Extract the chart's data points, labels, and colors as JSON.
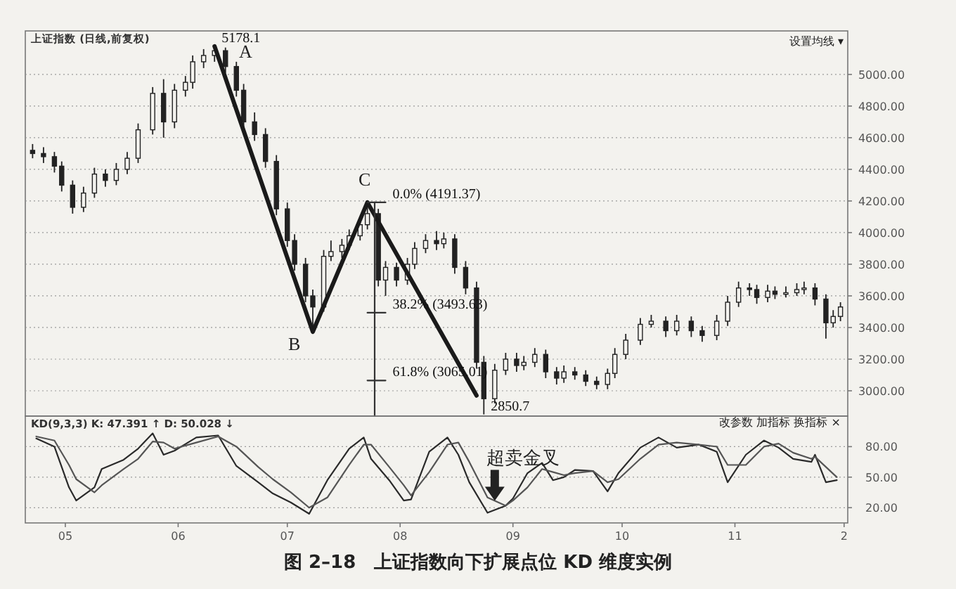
{
  "chart_data": [
    {
      "type": "candlestick",
      "title": "上证指数 (日线,前复权)",
      "color": "#222222",
      "x": [
        "--04-22",
        "--04-25",
        "--04-28",
        "--04-30",
        "--05-03",
        "--05-06",
        "--05-09",
        "--05-12",
        "--05-15",
        "--05-18",
        "--05-21",
        "--05-25",
        "--05-28",
        "--05-31",
        "--06-03",
        "--06-05",
        "--06-08",
        "--06-11",
        "--06-14",
        "--06-17",
        "--06-19",
        "--06-22",
        "--06-25",
        "--06-28",
        "--07-01",
        "--07-03",
        "--07-06",
        "--07-08",
        "--07-11",
        "--07-13",
        "--07-16",
        "--07-18",
        "--07-21",
        "--07-23",
        "--07-26",
        "--07-28",
        "--07-31",
        "--08-03",
        "--08-05",
        "--08-08",
        "--08-11",
        "--08-13",
        "--08-16",
        "--08-19",
        "--08-22",
        "--08-24",
        "--08-27",
        "--08-30",
        "--09-02",
        "--09-04",
        "--09-07",
        "--09-10",
        "--09-13",
        "--09-15",
        "--09-18",
        "--09-21",
        "--09-24",
        "--09-27",
        "--09-29",
        "--10-02",
        "--10-06",
        "--10-09",
        "--10-13",
        "--10-16",
        "--10-20",
        "--10-23",
        "--10-27",
        "--10-30",
        "--11-02",
        "--11-05",
        "--11-07",
        "--11-10",
        "--11-12",
        "--11-15",
        "--11-18",
        "--11-20",
        "--11-23",
        "--11-26",
        "--11-28",
        "--11-30"
      ],
      "ohlc": [
        [
          4520,
          4560,
          4470,
          4500
        ],
        [
          4500,
          4540,
          4440,
          4480
        ],
        [
          4480,
          4510,
          4380,
          4420
        ],
        [
          4420,
          4450,
          4260,
          4300
        ],
        [
          4300,
          4330,
          4120,
          4160
        ],
        [
          4160,
          4290,
          4130,
          4250
        ],
        [
          4250,
          4410,
          4220,
          4370
        ],
        [
          4370,
          4400,
          4290,
          4330
        ],
        [
          4330,
          4440,
          4300,
          4400
        ],
        [
          4400,
          4510,
          4370,
          4470
        ],
        [
          4470,
          4690,
          4440,
          4650
        ],
        [
          4650,
          4920,
          4620,
          4880
        ],
        [
          4880,
          4970,
          4600,
          4700
        ],
        [
          4700,
          4940,
          4660,
          4900
        ],
        [
          4900,
          4990,
          4860,
          4950
        ],
        [
          4950,
          5120,
          4910,
          5080
        ],
        [
          5080,
          5160,
          5040,
          5120
        ],
        [
          5120,
          5178.1,
          5080,
          5150
        ],
        [
          5150,
          5170,
          5010,
          5050
        ],
        [
          5050,
          5080,
          4860,
          4900
        ],
        [
          4900,
          4940,
          4660,
          4700
        ],
        [
          4700,
          4760,
          4580,
          4620
        ],
        [
          4620,
          4660,
          4410,
          4450
        ],
        [
          4450,
          4490,
          4110,
          4150
        ],
        [
          4150,
          4190,
          3910,
          3950
        ],
        [
          3950,
          3990,
          3760,
          3800
        ],
        [
          3800,
          3840,
          3560,
          3600
        ],
        [
          3600,
          3640,
          3373,
          3530
        ],
        [
          3530,
          3890,
          3500,
          3850
        ],
        [
          3850,
          3950,
          3820,
          3880
        ],
        [
          3880,
          3960,
          3840,
          3920
        ],
        [
          3920,
          4020,
          3890,
          3980
        ],
        [
          3980,
          4090,
          3950,
          4050
        ],
        [
          4050,
          4191.37,
          4020,
          4120
        ],
        [
          4120,
          4150,
          3660,
          3700
        ],
        [
          3700,
          3820,
          3600,
          3780
        ],
        [
          3780,
          3810,
          3660,
          3700
        ],
        [
          3700,
          3840,
          3670,
          3800
        ],
        [
          3800,
          3940,
          3770,
          3900
        ],
        [
          3900,
          3990,
          3870,
          3950
        ],
        [
          3950,
          4010,
          3890,
          3930
        ],
        [
          3930,
          4000,
          3900,
          3960
        ],
        [
          3960,
          3990,
          3740,
          3780
        ],
        [
          3780,
          3820,
          3610,
          3650
        ],
        [
          3650,
          3690,
          3140,
          3180
        ],
        [
          3180,
          3220,
          2850.7,
          2950
        ],
        [
          2950,
          3170,
          2920,
          3130
        ],
        [
          3130,
          3240,
          3100,
          3200
        ],
        [
          3200,
          3240,
          3120,
          3160
        ],
        [
          3160,
          3220,
          3130,
          3180
        ],
        [
          3180,
          3270,
          3150,
          3230
        ],
        [
          3230,
          3260,
          3080,
          3120
        ],
        [
          3120,
          3150,
          3040,
          3080
        ],
        [
          3080,
          3160,
          3050,
          3120
        ],
        [
          3120,
          3150,
          3070,
          3100
        ],
        [
          3100,
          3130,
          3030,
          3060
        ],
        [
          3060,
          3090,
          3010,
          3040
        ],
        [
          3040,
          3140,
          3010,
          3110
        ],
        [
          3110,
          3270,
          3080,
          3230
        ],
        [
          3230,
          3360,
          3200,
          3320
        ],
        [
          3320,
          3460,
          3290,
          3420
        ],
        [
          3420,
          3480,
          3400,
          3440
        ],
        [
          3440,
          3470,
          3340,
          3380
        ],
        [
          3380,
          3480,
          3350,
          3440
        ],
        [
          3440,
          3470,
          3340,
          3380
        ],
        [
          3380,
          3410,
          3310,
          3350
        ],
        [
          3350,
          3480,
          3320,
          3440
        ],
        [
          3440,
          3600,
          3410,
          3560
        ],
        [
          3560,
          3690,
          3530,
          3650
        ],
        [
          3650,
          3680,
          3600,
          3640
        ],
        [
          3640,
          3670,
          3550,
          3590
        ],
        [
          3590,
          3670,
          3560,
          3630
        ],
        [
          3630,
          3660,
          3580,
          3610
        ],
        [
          3610,
          3660,
          3590,
          3620
        ],
        [
          3620,
          3680,
          3600,
          3640
        ],
        [
          3640,
          3690,
          3610,
          3650
        ],
        [
          3650,
          3680,
          3540,
          3580
        ],
        [
          3580,
          3610,
          3330,
          3430
        ],
        [
          3430,
          3510,
          3400,
          3470
        ],
        [
          3470,
          3560,
          3440,
          3530
        ]
      ],
      "series": [
        {
          "type": "line",
          "color": "#1a1a1a",
          "x": [
            "--06-11",
            "--07-08",
            "--07-23",
            "--08-22"
          ],
          "values": [
            5178.1,
            3373,
            4191.37,
            2970
          ]
        },
        {
          "type": "line",
          "color": "#333333",
          "x": [
            "--07-25",
            "--07-25"
          ],
          "values": [
            4191.37,
            2840
          ]
        },
        {
          "type": "line",
          "color": "#333333",
          "x": [
            "--07-23",
            "--07-28"
          ],
          "values": [
            4191.37,
            4191.37
          ]
        },
        {
          "type": "line",
          "color": "#333333",
          "x": [
            "--07-23",
            "--07-28"
          ],
          "values": [
            3493.63,
            3493.63
          ]
        },
        {
          "type": "line",
          "color": "#333333",
          "x": [
            "--07-23",
            "--07-28"
          ],
          "values": [
            3065.01,
            3065.01
          ]
        }
      ],
      "xlim": [
        "--04-20",
        "--12-02"
      ],
      "ylim": [
        2840,
        5275
      ],
      "yticks": [
        {
          "value": 3000,
          "label": "3000.00"
        },
        {
          "value": 3200,
          "label": "3200.00"
        },
        {
          "value": 3400,
          "label": "3400.00"
        },
        {
          "value": 3600,
          "label": "3600.00"
        },
        {
          "value": 3800,
          "label": "3800.00"
        },
        {
          "value": 4000,
          "label": "4000.00"
        },
        {
          "value": 4200,
          "label": "4200.00"
        },
        {
          "value": 4400,
          "label": "4400.00"
        },
        {
          "value": 4600,
          "label": "4600.00"
        },
        {
          "value": 4800,
          "label": "4800.00"
        },
        {
          "value": 5000,
          "label": "5000.00"
        }
      ],
      "tick_labels": "y",
      "grid": "y",
      "annotations": [
        "设置均线 ▾",
        "A",
        "B",
        "C",
        {
          "text": "5178.1",
          "x": "--06-11",
          "y": 5178.1
        },
        {
          "text": "0.0%  (4191.37)",
          "x": "--07-28",
          "y": 4191.37
        },
        {
          "text": "38.2%  (3493.63)",
          "x": "--07-28",
          "y": 3493.63
        },
        {
          "text": "61.8%  (3065.01)",
          "x": "--07-28",
          "y": 3065.01
        },
        {
          "text": "2850.7",
          "x": "--08-24",
          "y": 2850.7
        }
      ]
    },
    {
      "type": "line",
      "title": "KD(9,3,3)  K: 47.391 ↑  D: 50.028 ↓",
      "x": [
        "--04-23",
        "--04-28",
        "--05-02",
        "--05-04",
        "--05-09",
        "--05-11",
        "--05-17",
        "--05-21",
        "--05-25",
        "--05-28",
        "--05-31",
        "--06-06",
        "--06-12",
        "--06-17",
        "--06-23",
        "--06-27",
        "--07-02",
        "--07-07",
        "--07-12",
        "--07-18",
        "--07-22",
        "--07-24",
        "--07-29",
        "--08-02",
        "--08-04",
        "--08-09",
        "--08-14",
        "--08-17",
        "--08-20",
        "--08-25",
        "--08-30",
        "--09-01",
        "--09-05",
        "--09-09",
        "--09-12",
        "--09-15",
        "--09-18",
        "--09-23",
        "--09-27",
        "--09-30",
        "--10-06",
        "--10-11",
        "--10-16",
        "--10-22",
        "--10-27",
        "--10-30",
        "--11-04",
        "--11-09",
        "--11-13",
        "--11-17",
        "--11-22",
        "--11-23",
        "--11-26",
        "--11-29"
      ],
      "series": [
        {
          "color": "#2a2a2a",
          "values": [
            88,
            80,
            40,
            27,
            40,
            58,
            67,
            78,
            93,
            72,
            76,
            89,
            91,
            61,
            45,
            34,
            25,
            14,
            47,
            78,
            89,
            68,
            47,
            27,
            28,
            75,
            89,
            72,
            45,
            15,
            22,
            29,
            54,
            64,
            47,
            50,
            57,
            56,
            36,
            54,
            79,
            89,
            79,
            82,
            75,
            45,
            72,
            86,
            79,
            68,
            65,
            72,
            45,
            47
          ]
        },
        {
          "color": "#555555",
          "values": [
            90,
            86,
            62,
            48,
            35,
            42,
            58,
            68,
            85,
            84,
            78,
            84,
            90,
            80,
            60,
            48,
            35,
            20,
            30,
            62,
            82,
            82,
            60,
            42,
            32,
            55,
            82,
            84,
            65,
            30,
            22,
            27,
            40,
            58,
            55,
            52,
            54,
            56,
            45,
            48,
            68,
            82,
            84,
            82,
            80,
            62,
            62,
            80,
            83,
            74,
            68,
            70,
            60,
            50
          ]
        }
      ],
      "xlim": [
        "--04-20",
        "--12-02"
      ],
      "ylim": [
        5,
        110
      ],
      "xticks": [
        {
          "value": "--05-01",
          "label": "05"
        },
        {
          "value": "--06-01",
          "label": "06"
        },
        {
          "value": "--07-01",
          "label": "07"
        },
        {
          "value": "--08-01",
          "label": "08"
        },
        {
          "value": "--09-01",
          "label": "09"
        },
        {
          "value": "--10-01",
          "label": "10"
        },
        {
          "value": "--11-01",
          "label": "11"
        },
        {
          "value": "--12-01",
          "label": "2"
        }
      ],
      "yticks": [
        {
          "value": 20,
          "label": "20.00"
        },
        {
          "value": 50,
          "label": "50.00"
        },
        {
          "value": 80,
          "label": "80.00"
        }
      ],
      "grid": "y",
      "annotations": [
        "改参数 加指标 换指标 ×",
        "图 2–18　上证指数向下扩展点位 KD 维度实例",
        {
          "text": "超卖金叉",
          "x": "--08-27",
          "y": 24
        }
      ]
    }
  ]
}
